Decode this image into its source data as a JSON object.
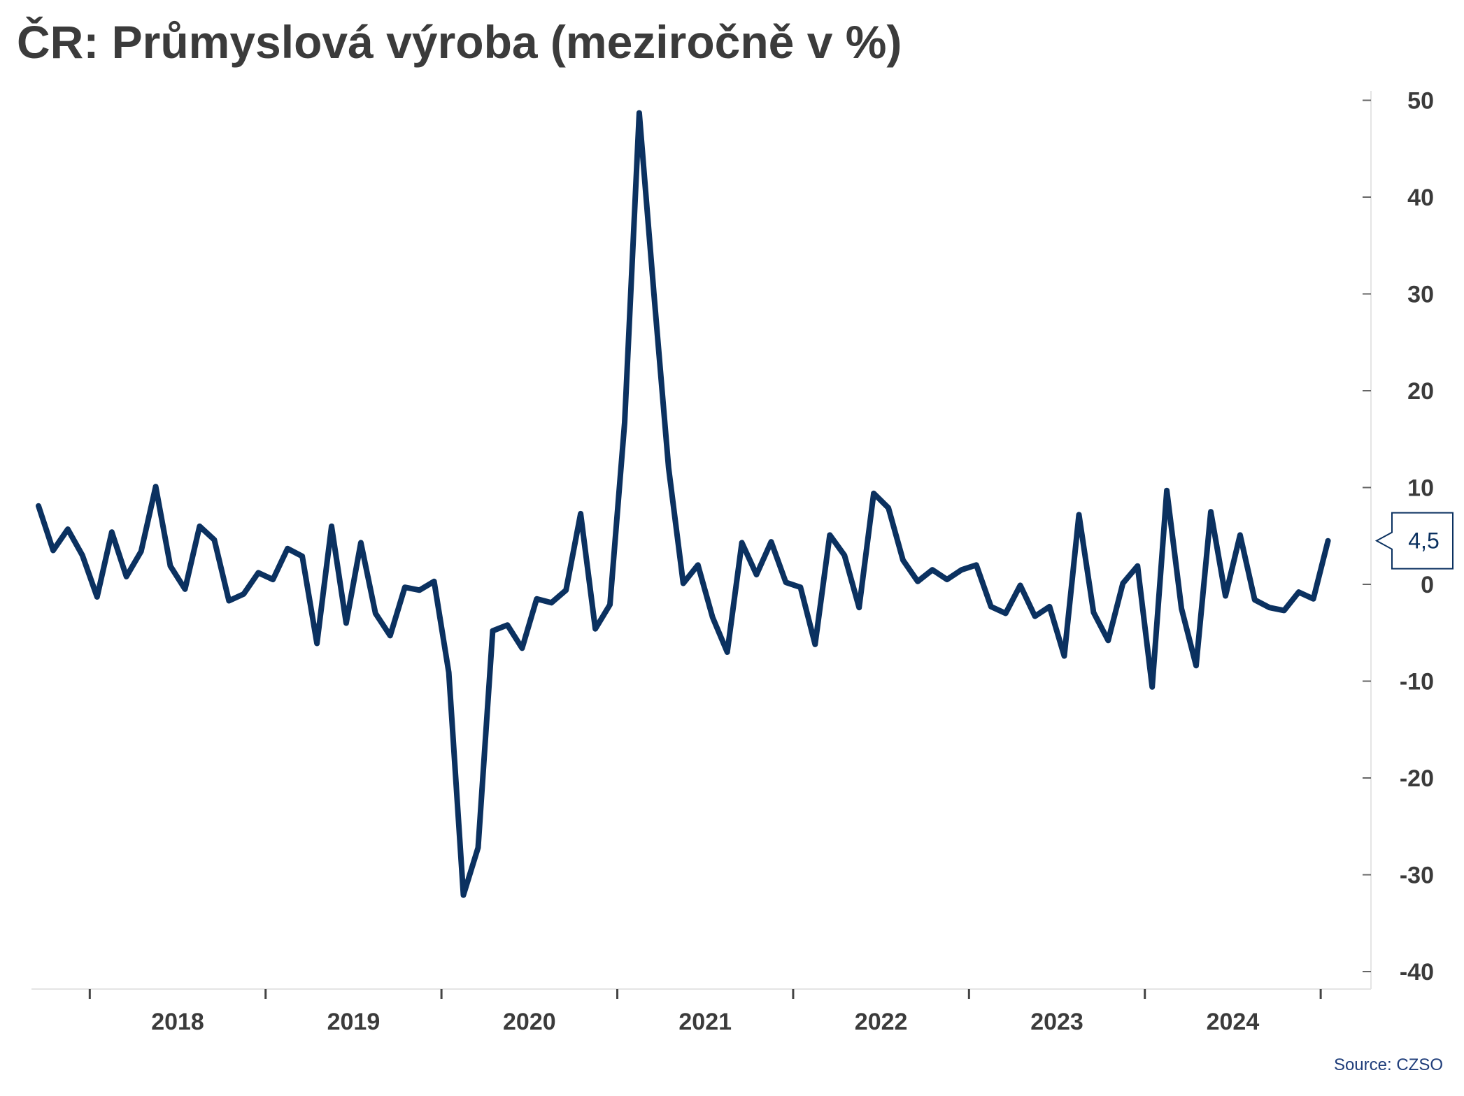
{
  "title": "ČR: Průmyslová výroba (meziročně v %)",
  "source": "Source: CZSO",
  "colors": {
    "line": "#0b3160",
    "axis": "#e4e4e4",
    "text": "#3b3b3b",
    "label_border": "#0b3160"
  },
  "chart_data": {
    "type": "line",
    "title": "ČR: Průmyslová výroba (meziročně v %)",
    "xlabel": "",
    "ylabel": "",
    "ylim": [
      -40,
      50
    ],
    "y_ticks": [
      50,
      40,
      30,
      20,
      10,
      0,
      -10,
      -20,
      -30,
      -40
    ],
    "y_axis_position": "right",
    "x_axis": {
      "start": "2017-09",
      "interval": "month",
      "tick_labels": [
        "2018",
        "2019",
        "2020",
        "2021",
        "2022",
        "2023",
        "2024"
      ]
    },
    "last_value_label": "4,5",
    "series": [
      {
        "values": [
          8.1,
          3.5,
          5.7,
          3.0,
          -1.3,
          5.4,
          0.8,
          3.4,
          10.1,
          1.9,
          -0.5,
          6.0,
          4.6,
          -1.7,
          -1.0,
          1.2,
          0.5,
          3.7,
          2.9,
          -6.1,
          6.0,
          -4.0,
          4.3,
          -3.0,
          -5.3,
          -0.3,
          -0.6,
          0.3,
          -9.1,
          -32.1,
          -27.2,
          -4.8,
          -4.2,
          -6.6,
          -1.5,
          -1.9,
          -0.6,
          7.3,
          -4.6,
          -2.1,
          16.7,
          48.7,
          30.0,
          12.0,
          0.1,
          2.0,
          -3.4,
          -7.0,
          4.3,
          1.0,
          4.4,
          0.2,
          -0.3,
          -6.2,
          5.1,
          3.0,
          -2.4,
          9.4,
          7.9,
          2.5,
          0.3,
          1.5,
          0.5,
          1.5,
          2.0,
          -2.3,
          -3.0,
          -0.1,
          -3.3,
          -2.3,
          -7.4,
          7.2,
          -2.9,
          -5.8,
          0.1,
          1.9,
          -10.6,
          9.7,
          -2.5,
          -8.4,
          7.5,
          -1.2,
          5.1,
          -1.6,
          -2.4,
          -2.7,
          -0.8,
          -1.5,
          4.5
        ]
      }
    ]
  }
}
